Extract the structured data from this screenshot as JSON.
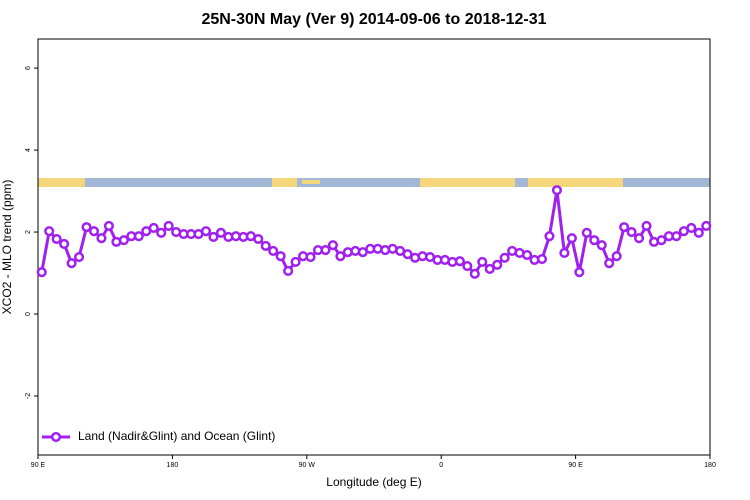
{
  "chart_data": {
    "type": "line",
    "title": "25N-30N May (Ver 9)   2014-09-06 to 2018-12-31",
    "x_label": "Longitude (deg E)",
    "y_label": "XCO2 - MLO trend (ppm)",
    "x": [
      92.5,
      97.5,
      102.5,
      107.5,
      112.5,
      117.5,
      122.5,
      127.5,
      132.5,
      137.5,
      142.5,
      147.5,
      152.5,
      157.5,
      162.5,
      167.5,
      172.5,
      177.5,
      182.5,
      187.5,
      192.5,
      197.5,
      202.5,
      207.5,
      212.5,
      217.5,
      222.5,
      227.5,
      232.5,
      237.5,
      242.5,
      247.5,
      252.5,
      257.5,
      262.5,
      267.5,
      272.5,
      277.5,
      282.5,
      287.5,
      292.5,
      297.5,
      302.5,
      307.5,
      312.5,
      317.5,
      322.5,
      327.5,
      332.5,
      337.5,
      342.5,
      347.5,
      352.5,
      357.5,
      362.5,
      367.5,
      372.5,
      377.5,
      382.5,
      387.5,
      392.5,
      397.5,
      402.5,
      407.5,
      412.5,
      417.5,
      422.5,
      427.5,
      432.5,
      437.5,
      442.5,
      447.5,
      452.5,
      457.5,
      462.5,
      467.5,
      472.5,
      477.5,
      482.5,
      487.5,
      492.5,
      497.5,
      502.5,
      507.5,
      512.5,
      517.5,
      522.5,
      527.5,
      532.5,
      537.5
    ],
    "series": [
      {
        "name": "Land (Nadir&Glint) and Ocean (Glint)",
        "color": "#a020f0",
        "values": [
          1.02,
          2.02,
          1.83,
          1.71,
          1.24,
          1.39,
          2.12,
          2.02,
          1.85,
          2.15,
          1.76,
          1.8,
          1.9,
          1.9,
          2.02,
          2.1,
          1.98,
          2.15,
          2.0,
          1.95,
          1.95,
          1.95,
          2.02,
          1.88,
          1.98,
          1.88,
          1.9,
          1.88,
          1.9,
          1.83,
          1.66,
          1.54,
          1.41,
          1.05,
          1.27,
          1.41,
          1.39,
          1.56,
          1.56,
          1.68,
          1.41,
          1.51,
          1.54,
          1.51,
          1.59,
          1.59,
          1.56,
          1.59,
          1.54,
          1.46,
          1.37,
          1.41,
          1.39,
          1.32,
          1.32,
          1.27,
          1.29,
          1.17,
          0.98,
          1.27,
          1.1,
          1.2,
          1.37,
          1.54,
          1.49,
          1.44,
          1.32,
          1.34,
          1.9,
          3.02,
          1.49,
          1.85,
          1.02,
          1.98,
          1.8,
          1.68,
          1.24,
          1.41,
          2.12,
          2.0,
          1.85,
          2.15,
          1.76,
          1.8,
          1.9,
          1.9,
          2.02,
          2.1,
          1.98,
          2.15
        ]
      }
    ],
    "xlim": [
      90,
      540
    ],
    "xticks": [
      {
        "value": 90,
        "label": "90 E"
      },
      180,
      {
        "value": 270,
        "label": "90 W"
      },
      {
        "value": 360,
        "label": "0"
      },
      {
        "value": 450,
        "label": "90 E"
      },
      {
        "value": 540,
        "label": "180"
      }
    ],
    "ylim": [
      -3.44,
      6.71
    ],
    "yticks": [
      -2,
      0,
      2,
      4,
      6
    ],
    "legend": "bottomleft"
  }
}
